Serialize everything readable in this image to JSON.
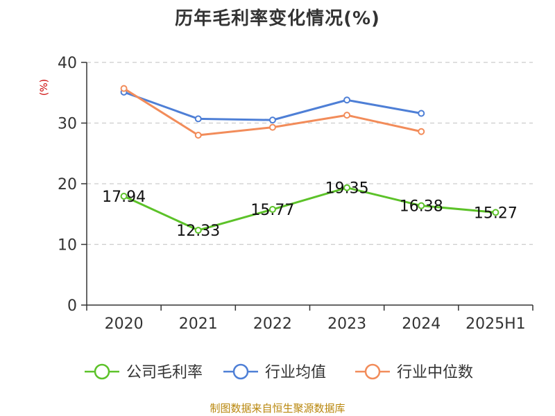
{
  "chart_data": {
    "type": "line",
    "title": "历年毛利率变化情况(%)",
    "ylabel": "(%)",
    "categories": [
      "2020",
      "2021",
      "2022",
      "2023",
      "2024",
      "2025H1"
    ],
    "ylim": [
      0,
      40
    ],
    "yticks": [
      0,
      10,
      20,
      30,
      40
    ],
    "grid": true,
    "legend_position": "bottom",
    "series": [
      {
        "name": "公司毛利率",
        "color": "#5cc229",
        "values": [
          17.94,
          12.33,
          15.77,
          19.35,
          16.38,
          15.27
        ],
        "labels": [
          "17.94",
          "12.33",
          "15.77",
          "19.35",
          "16.38",
          "15.27"
        ],
        "show_labels": true
      },
      {
        "name": "行业均值",
        "color": "#4e7fd6",
        "values": [
          35.1,
          30.7,
          30.5,
          33.8,
          31.6,
          null
        ],
        "show_labels": false
      },
      {
        "name": "行业中位数",
        "color": "#f28c5a",
        "values": [
          35.7,
          28.0,
          29.3,
          31.3,
          28.6,
          null
        ],
        "show_labels": false
      }
    ]
  },
  "source_note": "制图数据来自恒生聚源数据库"
}
